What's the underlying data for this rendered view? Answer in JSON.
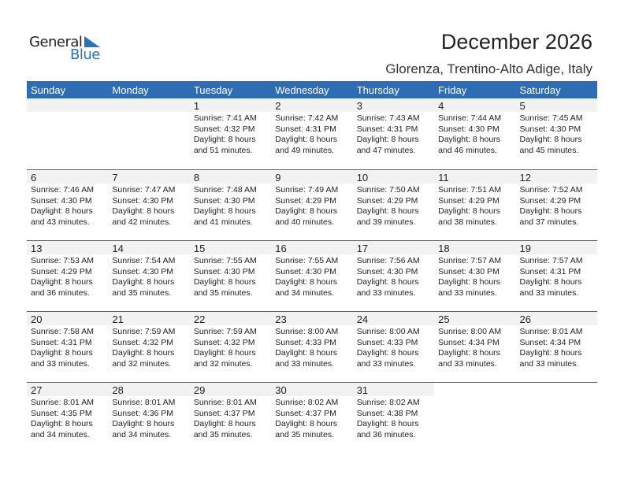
{
  "logo": {
    "text1": "General",
    "text2": "Blue"
  },
  "header": {
    "title": "December 2026",
    "subtitle": "Glorenza, Trentino-Alto Adige, Italy"
  },
  "colors": {
    "accent": "#2e6db4",
    "band": "#f2f2f2"
  },
  "weekdays": [
    "Sunday",
    "Monday",
    "Tuesday",
    "Wednesday",
    "Thursday",
    "Friday",
    "Saturday"
  ],
  "weeks": [
    [
      null,
      null,
      {
        "day": "1",
        "sunrise": "Sunrise: 7:41 AM",
        "sunset": "Sunset: 4:32 PM",
        "daylight": "Daylight: 8 hours",
        "minutes": "and 51 minutes."
      },
      {
        "day": "2",
        "sunrise": "Sunrise: 7:42 AM",
        "sunset": "Sunset: 4:31 PM",
        "daylight": "Daylight: 8 hours",
        "minutes": "and 49 minutes."
      },
      {
        "day": "3",
        "sunrise": "Sunrise: 7:43 AM",
        "sunset": "Sunset: 4:31 PM",
        "daylight": "Daylight: 8 hours",
        "minutes": "and 47 minutes."
      },
      {
        "day": "4",
        "sunrise": "Sunrise: 7:44 AM",
        "sunset": "Sunset: 4:30 PM",
        "daylight": "Daylight: 8 hours",
        "minutes": "and 46 minutes."
      },
      {
        "day": "5",
        "sunrise": "Sunrise: 7:45 AM",
        "sunset": "Sunset: 4:30 PM",
        "daylight": "Daylight: 8 hours",
        "minutes": "and 45 minutes."
      }
    ],
    [
      {
        "day": "6",
        "sunrise": "Sunrise: 7:46 AM",
        "sunset": "Sunset: 4:30 PM",
        "daylight": "Daylight: 8 hours",
        "minutes": "and 43 minutes."
      },
      {
        "day": "7",
        "sunrise": "Sunrise: 7:47 AM",
        "sunset": "Sunset: 4:30 PM",
        "daylight": "Daylight: 8 hours",
        "minutes": "and 42 minutes."
      },
      {
        "day": "8",
        "sunrise": "Sunrise: 7:48 AM",
        "sunset": "Sunset: 4:30 PM",
        "daylight": "Daylight: 8 hours",
        "minutes": "and 41 minutes."
      },
      {
        "day": "9",
        "sunrise": "Sunrise: 7:49 AM",
        "sunset": "Sunset: 4:29 PM",
        "daylight": "Daylight: 8 hours",
        "minutes": "and 40 minutes."
      },
      {
        "day": "10",
        "sunrise": "Sunrise: 7:50 AM",
        "sunset": "Sunset: 4:29 PM",
        "daylight": "Daylight: 8 hours",
        "minutes": "and 39 minutes."
      },
      {
        "day": "11",
        "sunrise": "Sunrise: 7:51 AM",
        "sunset": "Sunset: 4:29 PM",
        "daylight": "Daylight: 8 hours",
        "minutes": "and 38 minutes."
      },
      {
        "day": "12",
        "sunrise": "Sunrise: 7:52 AM",
        "sunset": "Sunset: 4:29 PM",
        "daylight": "Daylight: 8 hours",
        "minutes": "and 37 minutes."
      }
    ],
    [
      {
        "day": "13",
        "sunrise": "Sunrise: 7:53 AM",
        "sunset": "Sunset: 4:29 PM",
        "daylight": "Daylight: 8 hours",
        "minutes": "and 36 minutes."
      },
      {
        "day": "14",
        "sunrise": "Sunrise: 7:54 AM",
        "sunset": "Sunset: 4:30 PM",
        "daylight": "Daylight: 8 hours",
        "minutes": "and 35 minutes."
      },
      {
        "day": "15",
        "sunrise": "Sunrise: 7:55 AM",
        "sunset": "Sunset: 4:30 PM",
        "daylight": "Daylight: 8 hours",
        "minutes": "and 35 minutes."
      },
      {
        "day": "16",
        "sunrise": "Sunrise: 7:55 AM",
        "sunset": "Sunset: 4:30 PM",
        "daylight": "Daylight: 8 hours",
        "minutes": "and 34 minutes."
      },
      {
        "day": "17",
        "sunrise": "Sunrise: 7:56 AM",
        "sunset": "Sunset: 4:30 PM",
        "daylight": "Daylight: 8 hours",
        "minutes": "and 33 minutes."
      },
      {
        "day": "18",
        "sunrise": "Sunrise: 7:57 AM",
        "sunset": "Sunset: 4:30 PM",
        "daylight": "Daylight: 8 hours",
        "minutes": "and 33 minutes."
      },
      {
        "day": "19",
        "sunrise": "Sunrise: 7:57 AM",
        "sunset": "Sunset: 4:31 PM",
        "daylight": "Daylight: 8 hours",
        "minutes": "and 33 minutes."
      }
    ],
    [
      {
        "day": "20",
        "sunrise": "Sunrise: 7:58 AM",
        "sunset": "Sunset: 4:31 PM",
        "daylight": "Daylight: 8 hours",
        "minutes": "and 33 minutes."
      },
      {
        "day": "21",
        "sunrise": "Sunrise: 7:59 AM",
        "sunset": "Sunset: 4:32 PM",
        "daylight": "Daylight: 8 hours",
        "minutes": "and 32 minutes."
      },
      {
        "day": "22",
        "sunrise": "Sunrise: 7:59 AM",
        "sunset": "Sunset: 4:32 PM",
        "daylight": "Daylight: 8 hours",
        "minutes": "and 32 minutes."
      },
      {
        "day": "23",
        "sunrise": "Sunrise: 8:00 AM",
        "sunset": "Sunset: 4:33 PM",
        "daylight": "Daylight: 8 hours",
        "minutes": "and 33 minutes."
      },
      {
        "day": "24",
        "sunrise": "Sunrise: 8:00 AM",
        "sunset": "Sunset: 4:33 PM",
        "daylight": "Daylight: 8 hours",
        "minutes": "and 33 minutes."
      },
      {
        "day": "25",
        "sunrise": "Sunrise: 8:00 AM",
        "sunset": "Sunset: 4:34 PM",
        "daylight": "Daylight: 8 hours",
        "minutes": "and 33 minutes."
      },
      {
        "day": "26",
        "sunrise": "Sunrise: 8:01 AM",
        "sunset": "Sunset: 4:34 PM",
        "daylight": "Daylight: 8 hours",
        "minutes": "and 33 minutes."
      }
    ],
    [
      {
        "day": "27",
        "sunrise": "Sunrise: 8:01 AM",
        "sunset": "Sunset: 4:35 PM",
        "daylight": "Daylight: 8 hours",
        "minutes": "and 34 minutes."
      },
      {
        "day": "28",
        "sunrise": "Sunrise: 8:01 AM",
        "sunset": "Sunset: 4:36 PM",
        "daylight": "Daylight: 8 hours",
        "minutes": "and 34 minutes."
      },
      {
        "day": "29",
        "sunrise": "Sunrise: 8:01 AM",
        "sunset": "Sunset: 4:37 PM",
        "daylight": "Daylight: 8 hours",
        "minutes": "and 35 minutes."
      },
      {
        "day": "30",
        "sunrise": "Sunrise: 8:02 AM",
        "sunset": "Sunset: 4:37 PM",
        "daylight": "Daylight: 8 hours",
        "minutes": "and 35 minutes."
      },
      {
        "day": "31",
        "sunrise": "Sunrise: 8:02 AM",
        "sunset": "Sunset: 4:38 PM",
        "daylight": "Daylight: 8 hours",
        "minutes": "and 36 minutes."
      },
      null,
      null
    ]
  ]
}
